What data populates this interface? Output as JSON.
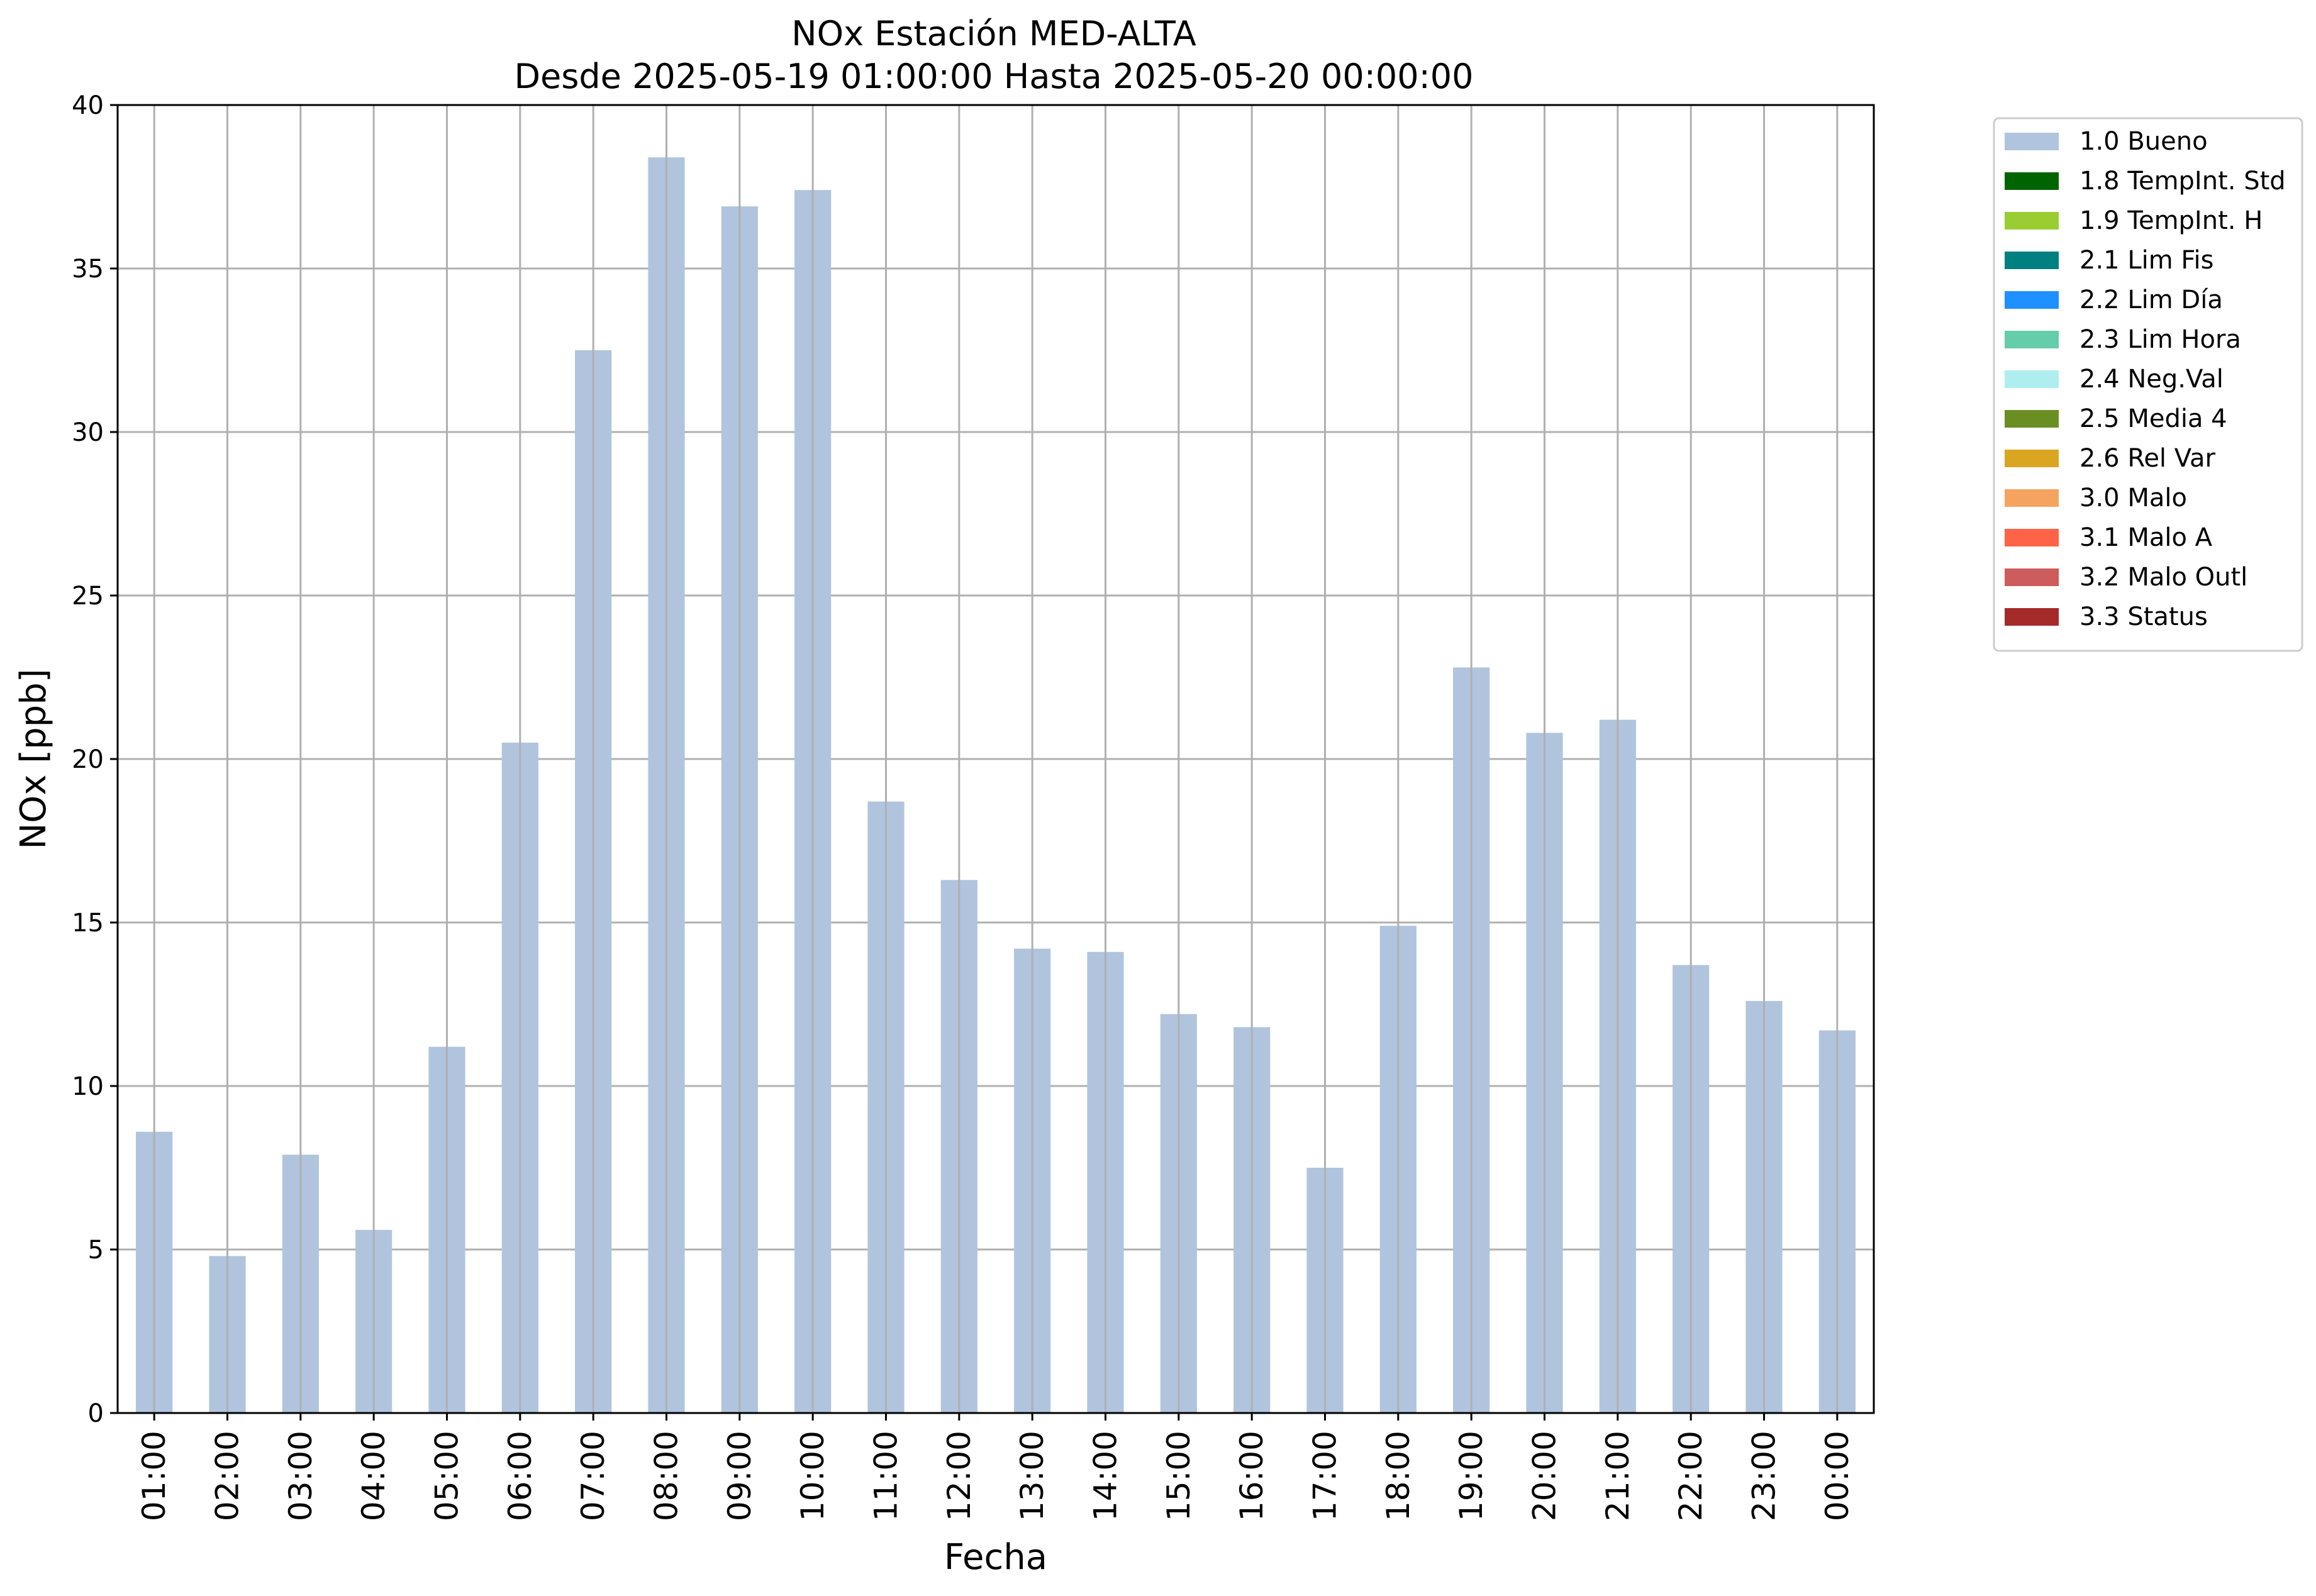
{
  "chart_data": {
    "type": "bar",
    "title": "NOx Estación MED-ALTA",
    "subtitle": "Desde 2025-05-19 01:00:00 Hasta 2025-05-20 00:00:00",
    "xlabel": "Fecha",
    "ylabel": "NOx [ppb]",
    "ylim": [
      0,
      40
    ],
    "yticks": [
      "0",
      "5",
      "10",
      "15",
      "20",
      "25",
      "30",
      "35",
      "40"
    ],
    "grid": true,
    "legend_position": "outside-top-right",
    "categories": [
      "01:00",
      "02:00",
      "03:00",
      "04:00",
      "05:00",
      "06:00",
      "07:00",
      "08:00",
      "09:00",
      "10:00",
      "11:00",
      "12:00",
      "13:00",
      "14:00",
      "15:00",
      "16:00",
      "17:00",
      "18:00",
      "19:00",
      "20:00",
      "21:00",
      "22:00",
      "23:00",
      "00:00"
    ],
    "series": [
      {
        "name": "1.0 Bueno",
        "color": "#b0c4de",
        "values": [
          8.6,
          4.8,
          7.9,
          5.6,
          11.2,
          20.5,
          32.5,
          38.4,
          36.9,
          37.4,
          18.7,
          16.3,
          14.2,
          14.1,
          12.2,
          11.8,
          7.5,
          14.9,
          22.8,
          20.8,
          21.2,
          13.7,
          12.6,
          11.7
        ]
      }
    ],
    "legend": [
      {
        "label": "1.0 Bueno",
        "color": "#b0c4de"
      },
      {
        "label": "1.8 TempInt. Std",
        "color": "#006400"
      },
      {
        "label": "1.9 TempInt. H",
        "color": "#9acd32"
      },
      {
        "label": "2.1 Lim Fis",
        "color": "#008080"
      },
      {
        "label": "2.2 Lim Día",
        "color": "#1e90ff"
      },
      {
        "label": "2.3 Lim Hora",
        "color": "#66cdaa"
      },
      {
        "label": "2.4 Neg.Val",
        "color": "#afeeee"
      },
      {
        "label": "2.5 Media 4",
        "color": "#6b8e23"
      },
      {
        "label": "2.6 Rel Var",
        "color": "#daa520"
      },
      {
        "label": "3.0 Malo",
        "color": "#f4a460"
      },
      {
        "label": "3.1 Malo A",
        "color": "#ff6347"
      },
      {
        "label": "3.2 Malo Outl",
        "color": "#cd5c5c"
      },
      {
        "label": "3.3 Status",
        "color": "#a52a2a"
      }
    ]
  }
}
